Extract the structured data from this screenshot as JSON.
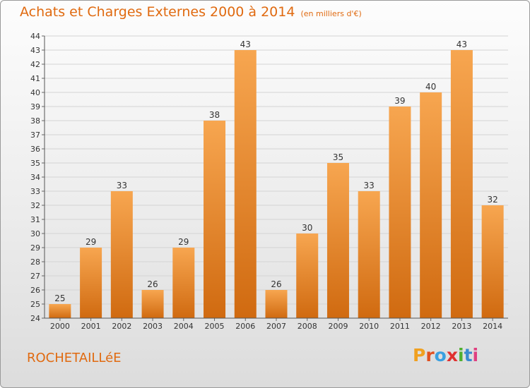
{
  "colors": {
    "title": "#e06a10",
    "bar_top": "#f7a650",
    "bar_bottom": "#d06a10",
    "grid": "#d4d4d4"
  },
  "header": {
    "title": "Achats et Charges Externes 2000 à 2014",
    "subtitle": "(en milliers d'€)"
  },
  "footer": {
    "town": "ROCHETAILLéE",
    "logo_letters": [
      "P",
      "r",
      "o",
      "x",
      "i",
      "t",
      "i"
    ],
    "logo_colors": [
      "#f0a020",
      "#e05020",
      "#3aa0e0",
      "#e03030",
      "#50b030",
      "#3a8ad0",
      "#e04080"
    ]
  },
  "chart_data": {
    "type": "bar",
    "title": "Achats et Charges Externes 2000 à 2014",
    "subtitle": "(en milliers d'€)",
    "xlabel": "",
    "ylabel": "",
    "categories": [
      "2000",
      "2001",
      "2002",
      "2003",
      "2004",
      "2005",
      "2006",
      "2007",
      "2008",
      "2009",
      "2010",
      "2011",
      "2012",
      "2013",
      "2014"
    ],
    "values": [
      25,
      29,
      33,
      26,
      29,
      38,
      43,
      26,
      30,
      35,
      33,
      39,
      40,
      43,
      32
    ],
    "ylim": [
      24,
      44
    ],
    "yticks": [
      24,
      25,
      26,
      27,
      28,
      29,
      30,
      31,
      32,
      33,
      34,
      35,
      36,
      37,
      38,
      39,
      40,
      41,
      42,
      43,
      44
    ],
    "grid": true,
    "legend": "none",
    "data_labels": true
  }
}
